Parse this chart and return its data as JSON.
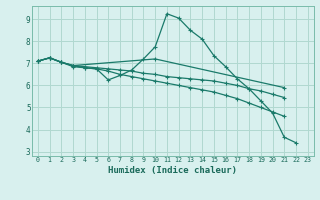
{
  "xlabel": "Humidex (Indice chaleur)",
  "bg_color": "#d8f0ee",
  "grid_color": "#b0d8d0",
  "line_color": "#1a7a6a",
  "xlim": [
    -0.5,
    23.5
  ],
  "ylim": [
    2.8,
    9.6
  ],
  "yticks": [
    3,
    4,
    5,
    6,
    7,
    8,
    9
  ],
  "xticks": [
    0,
    1,
    2,
    3,
    4,
    5,
    6,
    7,
    8,
    9,
    10,
    11,
    12,
    13,
    14,
    15,
    16,
    17,
    18,
    19,
    20,
    21,
    22,
    23
  ],
  "series": [
    {
      "x": [
        0,
        1,
        2,
        3,
        4,
        5,
        6,
        7,
        8,
        9,
        10,
        11,
        12,
        13,
        14,
        15,
        16,
        17,
        18,
        19,
        20,
        21,
        22
      ],
      "y": [
        7.1,
        7.25,
        7.05,
        6.85,
        6.8,
        6.75,
        6.25,
        6.45,
        6.7,
        7.2,
        7.75,
        9.25,
        9.05,
        8.5,
        8.1,
        7.35,
        6.85,
        6.3,
        5.85,
        5.3,
        4.75,
        3.65,
        3.4
      ]
    },
    {
      "x": [
        0,
        1,
        2,
        3,
        10,
        21
      ],
      "y": [
        7.1,
        7.25,
        7.05,
        6.9,
        7.2,
        5.9
      ]
    },
    {
      "x": [
        0,
        1,
        2,
        3,
        4,
        5,
        6,
        7,
        8,
        9,
        10,
        11,
        12,
        13,
        14,
        15,
        16,
        17,
        18,
        19,
        20,
        21
      ],
      "y": [
        7.1,
        7.25,
        7.05,
        6.9,
        6.85,
        6.8,
        6.75,
        6.7,
        6.65,
        6.55,
        6.5,
        6.4,
        6.35,
        6.3,
        6.25,
        6.2,
        6.1,
        6.0,
        5.85,
        5.75,
        5.6,
        5.45
      ]
    },
    {
      "x": [
        0,
        1,
        2,
        3,
        4,
        5,
        6,
        7,
        8,
        9,
        10,
        11,
        12,
        13,
        14,
        15,
        16,
        17,
        18,
        19,
        20,
        21
      ],
      "y": [
        7.1,
        7.25,
        7.05,
        6.9,
        6.8,
        6.75,
        6.65,
        6.5,
        6.4,
        6.3,
        6.2,
        6.1,
        6.0,
        5.9,
        5.8,
        5.7,
        5.55,
        5.4,
        5.2,
        5.0,
        4.8,
        4.6
      ]
    }
  ]
}
